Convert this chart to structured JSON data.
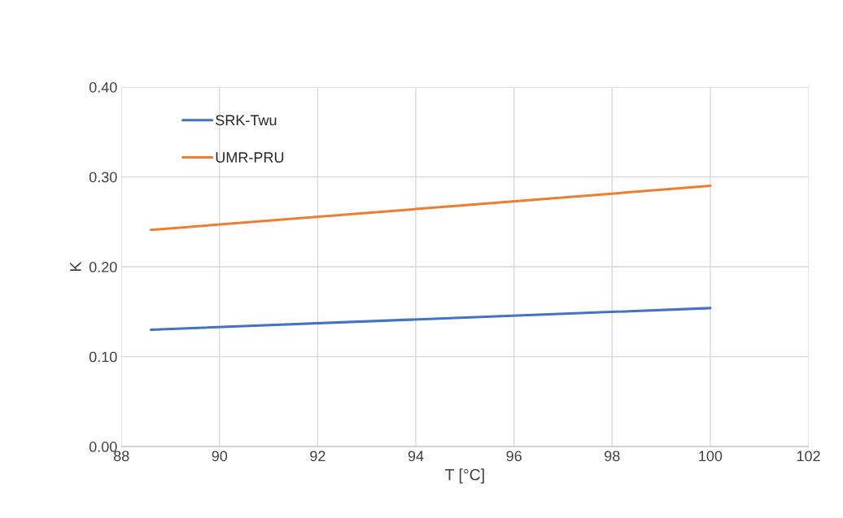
{
  "chart_data": {
    "type": "line",
    "xlabel": "T [°C]",
    "ylabel": "K",
    "x": [
      88.6,
      100
    ],
    "series": [
      {
        "name": "SRK-Twu",
        "color": "#4472c4",
        "values": [
          0.13,
          0.154
        ]
      },
      {
        "name": "UMR-PRU",
        "color": "#ed7d31",
        "values": [
          0.241,
          0.29
        ]
      }
    ],
    "xlim": [
      88,
      102
    ],
    "xticks": [
      88,
      90,
      92,
      94,
      96,
      98,
      100,
      102
    ],
    "ylim": [
      0,
      0.4
    ],
    "yticks": [
      {
        "value": 0,
        "label": "0.00"
      },
      {
        "value": 0.1,
        "label": "0.10"
      },
      {
        "value": 0.2,
        "label": "0.20"
      },
      {
        "value": 0.3,
        "label": "0.30"
      },
      {
        "value": 0.4,
        "label": "0.40"
      }
    ],
    "grid": true,
    "legend": "top left",
    "marker": "none",
    "line_style": "solid"
  }
}
